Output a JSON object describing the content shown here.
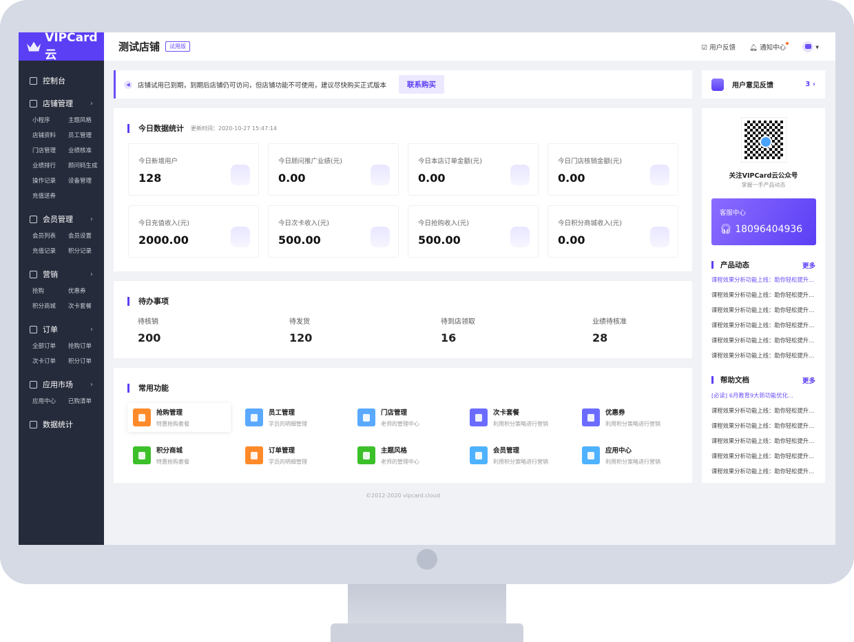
{
  "brand": {
    "name": "VIPCard云",
    "accent": "#5b3ff5"
  },
  "header": {
    "store": "测试店铺",
    "badge": "试用版",
    "feedback": "用户反馈",
    "notify": "通知中心"
  },
  "sidebar": [
    {
      "label": "控制台",
      "icon": "home-icon",
      "subs": []
    },
    {
      "label": "店铺管理",
      "icon": "store-icon",
      "subs": [
        "小程序",
        "主题风格",
        "店铺资料",
        "员工管理",
        "门店管理",
        "业绩核准",
        "业绩排行",
        "顾问码生成",
        "操作记录",
        "设备管理",
        "充值送券"
      ]
    },
    {
      "label": "会员管理",
      "icon": "diamond-icon",
      "subs": [
        "会员列表",
        "会员设置",
        "充值记录",
        "积分记录"
      ]
    },
    {
      "label": "营销",
      "icon": "megaphone-icon",
      "subs": [
        "抢购",
        "优惠券",
        "积分商城",
        "次卡套餐"
      ]
    },
    {
      "label": "订单",
      "icon": "order-icon",
      "subs": [
        "全部订单",
        "抢购订单",
        "次卡订单",
        "积分订单"
      ]
    },
    {
      "label": "应用市场",
      "icon": "apps-icon",
      "subs": [
        "应用中心",
        "已购清单"
      ]
    },
    {
      "label": "数据统计",
      "icon": "chart-icon",
      "subs": []
    }
  ],
  "notice": {
    "text": "店铺试用已到期，到期后店铺仍可访问，但店铺功能不可使用，建议尽快购买正式版本",
    "button": "联系购买"
  },
  "stats": {
    "title": "今日数据统计",
    "updated": "更新时间：2020-10-27 15:47:14",
    "items": [
      {
        "label": "今日新增用户",
        "value": "128"
      },
      {
        "label": "今日顾问推广业绩(元)",
        "value": "0.00"
      },
      {
        "label": "今日本店订单金额(元)",
        "value": "0.00"
      },
      {
        "label": "今日门店核销金额(元)",
        "value": "0.00"
      },
      {
        "label": "今日充值收入(元)",
        "value": "2000.00"
      },
      {
        "label": "今日次卡收入(元)",
        "value": "500.00"
      },
      {
        "label": "今日抢购收入(元)",
        "value": "500.00"
      },
      {
        "label": "今日积分商城收入(元)",
        "value": "0.00"
      }
    ]
  },
  "todo": {
    "title": "待办事项",
    "items": [
      {
        "label": "待核销",
        "value": "200"
      },
      {
        "label": "待发货",
        "value": "120"
      },
      {
        "label": "待到店领取",
        "value": "16"
      },
      {
        "label": "业绩待核准",
        "value": "28"
      }
    ]
  },
  "functions": {
    "title": "常用功能",
    "items": [
      {
        "name": "抢购管理",
        "desc": "特惠抢购套餐",
        "color": "#ff8a2a"
      },
      {
        "name": "员工管理",
        "desc": "学员的明细管理",
        "color": "#5aa9ff"
      },
      {
        "name": "门店管理",
        "desc": "老师的管理中心",
        "color": "#5aa9ff"
      },
      {
        "name": "次卡套餐",
        "desc": "利用积分策略进行营销",
        "color": "#6b6cff"
      },
      {
        "name": "优惠券",
        "desc": "利用积分策略进行营销",
        "color": "#6b6cff"
      },
      {
        "name": "积分商城",
        "desc": "特惠抢购套餐",
        "color": "#3cc02a"
      },
      {
        "name": "订单管理",
        "desc": "学员的明细管理",
        "color": "#ff8a2a"
      },
      {
        "name": "主题风格",
        "desc": "老师的管理中心",
        "color": "#3cc02a"
      },
      {
        "name": "会员管理",
        "desc": "利用积分策略进行营销",
        "color": "#4fb2ff"
      },
      {
        "name": "应用中心",
        "desc": "利用积分策略进行营销",
        "color": "#4fb2ff"
      }
    ]
  },
  "footer": "©2012-2020 vipcard.cloud",
  "right": {
    "feedback": {
      "label": "用户意见反馈",
      "count": "3"
    },
    "qr": {
      "title": "关注VIPCard云公众号",
      "sub": "掌握一手产品动态"
    },
    "service": {
      "title": "客服中心",
      "phone": "18096404936"
    },
    "news": {
      "title": "产品动态",
      "more": "更多",
      "items": [
        "课程效果分析功能上线：助你轻松提升...",
        "课程效果分析功能上线：助你轻松提升...",
        "课程效果分析功能上线：助你轻松提升...",
        "课程效果分析功能上线：助你轻松提升...",
        "课程效果分析功能上线：助你轻松提升...",
        "课程效果分析功能上线：助你轻松提升..."
      ]
    },
    "help": {
      "title": "帮助文档",
      "more": "更多",
      "items": [
        "[必读] 6月教育9大新功能优化...",
        "课程效果分析功能上线：助你轻松提升...",
        "课程效果分析功能上线：助你轻松提升...",
        "课程效果分析功能上线：助你轻松提升...",
        "课程效果分析功能上线：助你轻松提升...",
        "课程效果分析功能上线：助你轻松提升..."
      ]
    }
  }
}
